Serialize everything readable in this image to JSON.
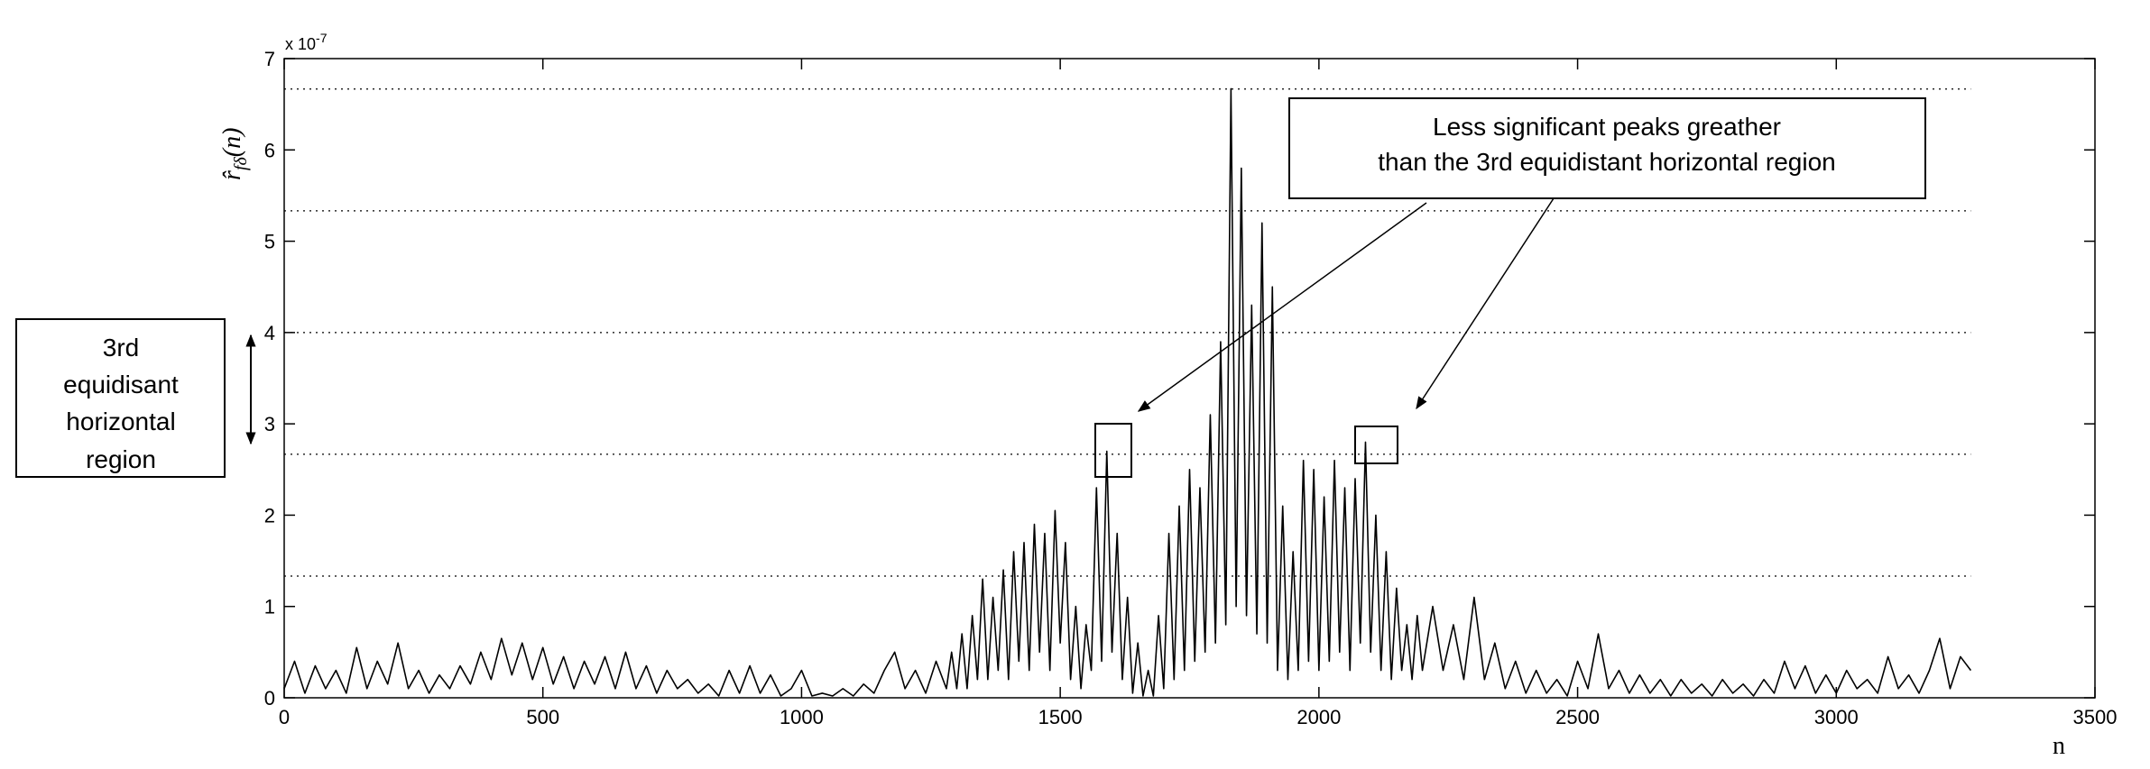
{
  "chart_data": {
    "type": "line",
    "x_label": "n",
    "y_label_parts": [
      "r̂",
      "fδ",
      "(n)"
    ],
    "y_exponent": {
      "base": "x 10",
      "power": "-7"
    },
    "xlim": [
      0,
      3500
    ],
    "xticks": [
      0,
      500,
      1000,
      1500,
      2000,
      2500,
      3000,
      3500
    ],
    "ylim": [
      0,
      7
    ],
    "yticks": [
      0,
      1,
      2,
      3,
      4,
      5,
      6,
      7
    ],
    "hlines": [
      1.333,
      2.667,
      4.0,
      5.333,
      6.667
    ],
    "annotation_top": [
      "Less significant peaks greather",
      "than the 3rd equidistant horizontal region"
    ],
    "annotation_left": [
      "3rd",
      "equidisant",
      "horizontal",
      "region"
    ],
    "series": [
      {
        "color": "#000000",
        "x": [
          0,
          20,
          40,
          60,
          80,
          100,
          120,
          140,
          160,
          180,
          200,
          220,
          240,
          260,
          280,
          300,
          320,
          340,
          360,
          380,
          400,
          420,
          440,
          460,
          480,
          500,
          520,
          540,
          560,
          580,
          600,
          620,
          640,
          660,
          680,
          700,
          720,
          740,
          760,
          780,
          800,
          820,
          840,
          860,
          880,
          900,
          920,
          940,
          960,
          980,
          1000,
          1020,
          1040,
          1060,
          1080,
          1100,
          1120,
          1140,
          1160,
          1180,
          1200,
          1220,
          1240,
          1260,
          1280,
          1290,
          1300,
          1310,
          1320,
          1330,
          1340,
          1350,
          1360,
          1370,
          1380,
          1390,
          1400,
          1410,
          1420,
          1430,
          1440,
          1450,
          1460,
          1470,
          1480,
          1490,
          1500,
          1510,
          1520,
          1530,
          1540,
          1550,
          1560,
          1570,
          1580,
          1590,
          1600,
          1610,
          1620,
          1630,
          1640,
          1650,
          1660,
          1670,
          1680,
          1690,
          1700,
          1710,
          1720,
          1730,
          1740,
          1750,
          1760,
          1770,
          1780,
          1790,
          1800,
          1810,
          1820,
          1830,
          1840,
          1850,
          1860,
          1870,
          1880,
          1890,
          1900,
          1910,
          1920,
          1930,
          1940,
          1950,
          1960,
          1970,
          1980,
          1990,
          2000,
          2010,
          2020,
          2030,
          2040,
          2050,
          2060,
          2070,
          2080,
          2090,
          2100,
          2110,
          2120,
          2130,
          2140,
          2150,
          2160,
          2170,
          2180,
          2190,
          2200,
          2220,
          2240,
          2260,
          2280,
          2300,
          2320,
          2340,
          2360,
          2380,
          2400,
          2420,
          2440,
          2460,
          2480,
          2500,
          2520,
          2540,
          2560,
          2580,
          2600,
          2620,
          2640,
          2660,
          2680,
          2700,
          2720,
          2740,
          2760,
          2780,
          2800,
          2820,
          2840,
          2860,
          2880,
          2900,
          2920,
          2940,
          2960,
          2980,
          3000,
          3020,
          3040,
          3060,
          3080,
          3100,
          3120,
          3140,
          3160,
          3180,
          3200,
          3220,
          3240,
          3260
        ],
        "values": [
          0.1,
          0.4,
          0.05,
          0.35,
          0.1,
          0.3,
          0.05,
          0.55,
          0.1,
          0.4,
          0.15,
          0.6,
          0.1,
          0.3,
          0.05,
          0.25,
          0.1,
          0.35,
          0.15,
          0.5,
          0.2,
          0.65,
          0.25,
          0.6,
          0.2,
          0.55,
          0.15,
          0.45,
          0.1,
          0.4,
          0.15,
          0.45,
          0.1,
          0.5,
          0.1,
          0.35,
          0.05,
          0.3,
          0.1,
          0.2,
          0.05,
          0.15,
          0.02,
          0.3,
          0.05,
          0.35,
          0.05,
          0.25,
          0.02,
          0.1,
          0.3,
          0.02,
          0.05,
          0.02,
          0.1,
          0.02,
          0.15,
          0.05,
          0.3,
          0.5,
          0.1,
          0.3,
          0.05,
          0.4,
          0.1,
          0.5,
          0.1,
          0.7,
          0.1,
          0.9,
          0.2,
          1.3,
          0.2,
          1.1,
          0.3,
          1.4,
          0.2,
          1.6,
          0.4,
          1.7,
          0.3,
          1.9,
          0.5,
          1.8,
          0.3,
          2.05,
          0.6,
          1.7,
          0.2,
          1.0,
          0.1,
          0.8,
          0.3,
          2.3,
          0.4,
          2.7,
          0.5,
          1.8,
          0.2,
          1.1,
          0.05,
          0.6,
          0.02,
          0.3,
          0.02,
          0.9,
          0.1,
          1.8,
          0.2,
          2.1,
          0.3,
          2.5,
          0.4,
          2.3,
          0.5,
          3.1,
          0.6,
          3.9,
          0.8,
          6.67,
          1.0,
          5.8,
          0.9,
          4.3,
          0.7,
          5.2,
          0.6,
          4.5,
          0.3,
          2.1,
          0.2,
          1.6,
          0.3,
          2.6,
          0.4,
          2.5,
          0.3,
          2.2,
          0.4,
          2.6,
          0.5,
          2.3,
          0.3,
          2.4,
          0.6,
          2.8,
          0.5,
          2.0,
          0.3,
          1.6,
          0.2,
          1.2,
          0.3,
          0.8,
          0.2,
          0.9,
          0.3,
          1.0,
          0.3,
          0.8,
          0.2,
          1.1,
          0.2,
          0.6,
          0.1,
          0.4,
          0.05,
          0.3,
          0.05,
          0.2,
          0.02,
          0.4,
          0.1,
          0.7,
          0.1,
          0.3,
          0.05,
          0.25,
          0.05,
          0.2,
          0.02,
          0.2,
          0.05,
          0.15,
          0.02,
          0.2,
          0.05,
          0.15,
          0.02,
          0.2,
          0.05,
          0.4,
          0.1,
          0.35,
          0.05,
          0.25,
          0.05,
          0.3,
          0.1,
          0.2,
          0.05,
          0.45,
          0.1,
          0.25,
          0.05,
          0.3,
          0.65,
          0.1,
          0.45,
          0.3
        ]
      }
    ]
  }
}
